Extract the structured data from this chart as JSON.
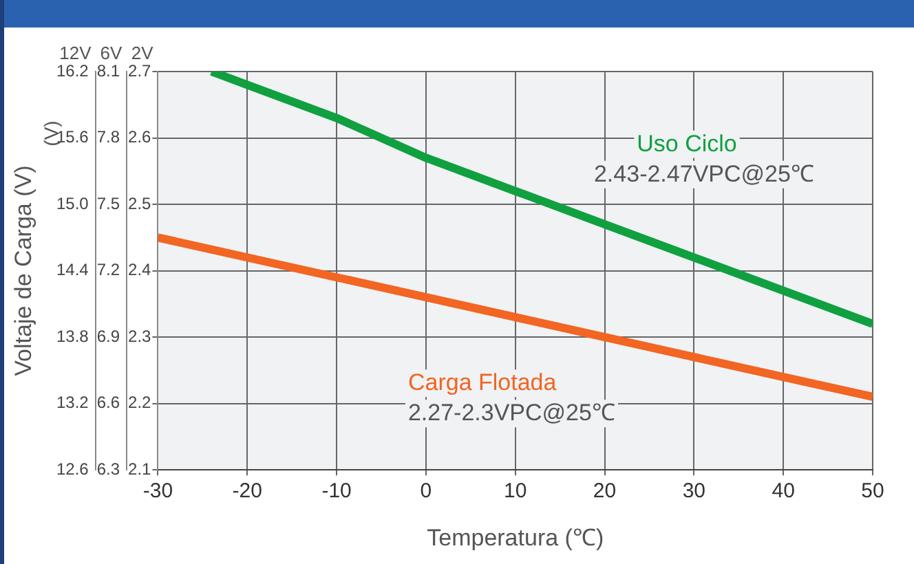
{
  "chart_data": {
    "type": "line",
    "ylabel": "2V",
    "y2label": "6V",
    "y3label": "12V",
    "xlabel": "Temperatura (℃)",
    "annotations": [
      "Voltaje de Carga (V)",
      "(V)",
      "2.43-2.47VPC@25℃",
      "2.27-2.3VPC@25℃"
    ],
    "xlim": [
      -30,
      50
    ],
    "xticks": [
      -30,
      -20,
      -10,
      0,
      10,
      20,
      30,
      40,
      50
    ],
    "ylim": [
      2.1,
      2.7
    ],
    "yticks": [
      2.1,
      2.2,
      2.3,
      2.4,
      2.5,
      2.6,
      2.7
    ],
    "y2lim": [
      6.3,
      8.1
    ],
    "y2ticks": [
      6.3,
      6.6,
      6.9,
      7.2,
      7.5,
      7.8,
      8.1
    ],
    "y3lim": [
      12.6,
      16.2
    ],
    "y3ticks": [
      12.6,
      13.2,
      13.8,
      14.4,
      {
        "value": 15,
        "label": "15.0"
      },
      15.6,
      16.2
    ],
    "grid": true,
    "legend": false,
    "marker": "none",
    "line_style": "solid",
    "series": [
      {
        "name": "Uso Ciclo",
        "color": "#10a040",
        "x": [
          -24,
          -20,
          -10,
          0,
          10,
          20,
          30,
          40,
          50
        ],
        "values": [
          2.7,
          2.68,
          2.63,
          2.57,
          2.52,
          2.47,
          2.42,
          2.37,
          2.32
        ]
      },
      {
        "name": "Carga Flotada",
        "color": "#f26522",
        "x": [
          -30,
          -10,
          0,
          10,
          20,
          40,
          50
        ],
        "values": [
          2.45,
          2.39,
          2.36,
          2.33,
          2.3,
          2.24,
          2.21
        ]
      }
    ]
  }
}
